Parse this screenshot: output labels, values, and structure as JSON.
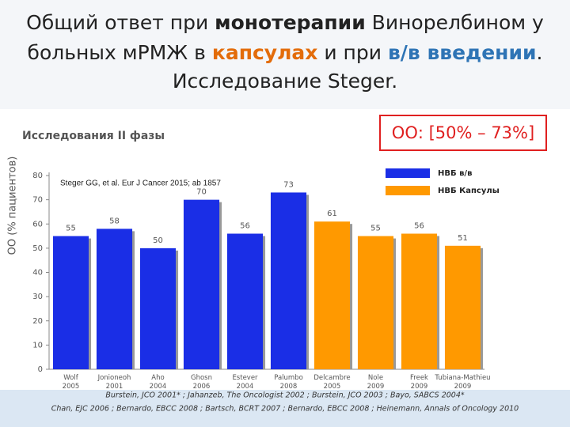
{
  "title_parts": [
    "Общий ответ при ",
    "монотерапии",
    " Винорелбином у",
    "больных мРМЖ в ",
    "капсулах",
    " и при ",
    "в/в введении",
    ".",
    "Исследование Steger."
  ],
  "chart_data": {
    "type": "bar",
    "title": "Исследования II фазы",
    "ylabel": "ОО (% пациентов)",
    "annotation": "ОО: [50% – 73%]",
    "reference": "Steger GG, et al. Eur J Cancer 2015; ab 1857",
    "categories": [
      "Wolf 2005",
      "Jonioneoh 2001",
      "Aho 2004",
      "Ghosn 2006",
      "Estever 2004",
      "Palumbo 2008",
      "Delcambre 2005",
      "Nole 2009",
      "Freek 2009",
      "Tubiana-Mathieu 2009"
    ],
    "series": [
      {
        "name": "НВБ в/в",
        "color": "#1a2ee6",
        "values": [
          55,
          58,
          50,
          70,
          56,
          73,
          null,
          null,
          null,
          null
        ]
      },
      {
        "name": "НВБ Капсулы",
        "color": "#ff9900",
        "values": [
          null,
          null,
          null,
          null,
          null,
          null,
          61,
          55,
          56,
          51
        ]
      }
    ],
    "ylim": [
      0,
      80
    ],
    "yticks": [
      0,
      10,
      20,
      30,
      40,
      50,
      60,
      70,
      80
    ],
    "grid": false
  },
  "footer": [
    "Burstein, JCO 2001* ; Jahanzeb, The Oncologist 2002 ; Burstein, JCO 2003 ; Bayo, SABCS 2004*",
    "Chan, EJC 2006 ; Bernardo, EBCC 2008 ; Bartsch, BCRT 2007 ; Bernardo, EBCC 2008 ; Heinemann, Annals of Oncology 2010"
  ]
}
